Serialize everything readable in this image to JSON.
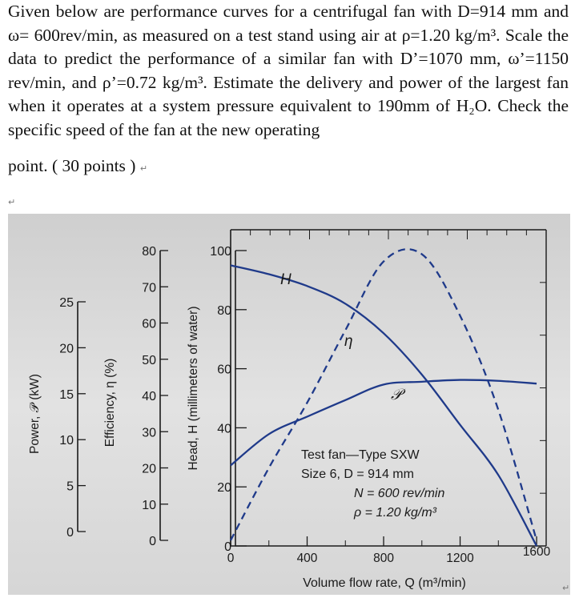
{
  "problem": {
    "text": "Given below are performance curves for a centrifugal fan with D=914 mm and ω= 600rev/min, as measured on a test stand using air at ρ=1.20 kg/m³. Scale the data to predict the performance of a similar fan with D’=1070 mm, ω’=1150 rev/min, and ρ’=0.72 kg/m³. Estimate the delivery and power of the largest fan when it operates at a system pressure equivalent to 190mm of H₂O. Check the specific speed of the fan at the new operating",
    "last_line": "point.  ( 30 points )",
    "return_mark": "↵"
  },
  "chart_data": {
    "type": "line",
    "xlabel": "Volume flow rate, Q (m³/min)",
    "x_ticks": [
      "0",
      "400",
      "800",
      "1200",
      "1600"
    ],
    "xlim": [
      0,
      1650
    ],
    "axes": [
      {
        "label": "Power, 𝒫 (kW)",
        "ticks": [
          "0",
          "5",
          "10",
          "15",
          "20",
          "25"
        ],
        "range": [
          0,
          25
        ]
      },
      {
        "label": "Efficiency, η (%)",
        "ticks": [
          "0",
          "10",
          "20",
          "30",
          "40",
          "50",
          "60",
          "70",
          "80"
        ],
        "range": [
          0,
          80
        ]
      },
      {
        "label": "Head, H (millimeters of water)",
        "ticks": [
          "0",
          "20",
          "40",
          "60",
          "80",
          "100"
        ],
        "range": [
          0,
          100
        ]
      }
    ],
    "series": [
      {
        "name": "H",
        "axis": "head",
        "style": "solid",
        "x": [
          0,
          200,
          400,
          600,
          800,
          1000,
          1200,
          1400,
          1600
        ],
        "y": [
          95,
          92,
          88,
          82,
          72,
          58,
          41,
          24,
          0
        ]
      },
      {
        "name": "η",
        "axis": "efficiency",
        "style": "dashed",
        "x": [
          0,
          200,
          400,
          600,
          800,
          1000,
          1200,
          1400,
          1600
        ],
        "y": [
          0,
          20,
          38,
          58,
          77,
          79,
          62,
          36,
          0
        ]
      },
      {
        "name": "𝒫",
        "axis": "power",
        "style": "solid",
        "x": [
          0,
          200,
          400,
          600,
          800,
          1000,
          1200,
          1400,
          1600
        ],
        "y": [
          7.2,
          10.6,
          12.5,
          14.3,
          16.0,
          16.3,
          16.5,
          16.4,
          16.1
        ]
      }
    ],
    "legend": {
      "line1": "Test fan—Type SXW",
      "line2": "Size 6, D = 914 mm",
      "line3": "N = 600 rev/min",
      "line4": "ρ = 1.20 kg/m³"
    },
    "colors": {
      "curve": "#1f3a8a",
      "axis": "#1a1a1a",
      "photo_bg": "#dcdcdc"
    }
  }
}
